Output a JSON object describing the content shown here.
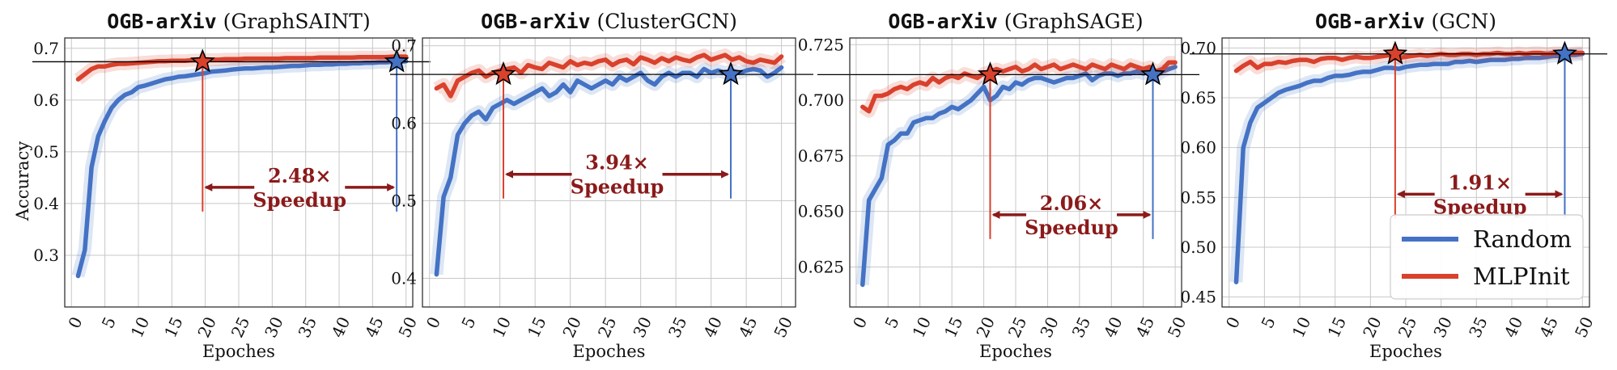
{
  "figure": {
    "ylabel": "Accuracy",
    "xlabel": "Epoches",
    "legend": {
      "placement": "lower-right of last panel",
      "entries": [
        {
          "name": "Random",
          "color": "#4472c4"
        },
        {
          "name": "MLPInit",
          "color": "#d9412c"
        }
      ]
    },
    "colors": {
      "random": "#4472c4",
      "mlpinit": "#d9412c",
      "annotation": "#8b1a1a",
      "hline": "#000000"
    }
  },
  "chart_data": [
    {
      "type": "line",
      "title_mono": "OGB-arXiv",
      "title_rest": " (GraphSAINT)",
      "xlabel": "Epoches",
      "ylabel": "Accuracy",
      "xlim": [
        -1,
        51
      ],
      "ylim": [
        0.2,
        0.72
      ],
      "xticks": [
        0,
        5,
        10,
        15,
        20,
        25,
        30,
        35,
        40,
        45,
        50
      ],
      "yticks": [
        0.3,
        0.4,
        0.5,
        0.6,
        0.7
      ],
      "ytick_labels": [
        "0.3",
        "0.4",
        "0.5",
        "0.6",
        "0.7"
      ],
      "grid": true,
      "hline": 0.674,
      "speedup": {
        "label": "2.48×",
        "word": "Speedup",
        "x_mlpinit": 19.6,
        "x_random": 48.6,
        "y": 0.425
      },
      "series": [
        {
          "name": "Random",
          "x": [
            1,
            2,
            3,
            4,
            5,
            6,
            7,
            8,
            9,
            10,
            11,
            12,
            13,
            14,
            15,
            16,
            17,
            18,
            19,
            20,
            21,
            22,
            23,
            24,
            25,
            26,
            27,
            28,
            29,
            30,
            31,
            32,
            33,
            34,
            35,
            36,
            37,
            38,
            39,
            40,
            41,
            42,
            43,
            44,
            45,
            46,
            47,
            48,
            49,
            50
          ],
          "y": [
            0.26,
            0.31,
            0.47,
            0.53,
            0.56,
            0.585,
            0.6,
            0.61,
            0.615,
            0.625,
            0.628,
            0.632,
            0.636,
            0.64,
            0.642,
            0.645,
            0.646,
            0.648,
            0.65,
            0.652,
            0.655,
            0.656,
            0.657,
            0.659,
            0.66,
            0.661,
            0.661,
            0.662,
            0.663,
            0.663,
            0.664,
            0.665,
            0.666,
            0.666,
            0.667,
            0.668,
            0.668,
            0.669,
            0.669,
            0.67,
            0.67,
            0.671,
            0.671,
            0.672,
            0.672,
            0.673,
            0.673,
            0.674,
            0.674,
            0.675
          ]
        },
        {
          "name": "MLPInit",
          "x": [
            1,
            2,
            3,
            4,
            5,
            6,
            7,
            8,
            9,
            10,
            11,
            12,
            13,
            14,
            15,
            16,
            17,
            18,
            19,
            20,
            21,
            22,
            23,
            24,
            25,
            26,
            27,
            28,
            29,
            30,
            31,
            32,
            33,
            34,
            35,
            36,
            37,
            38,
            39,
            40,
            41,
            42,
            43,
            44,
            45,
            46,
            47,
            48,
            49,
            50
          ],
          "y": [
            0.64,
            0.65,
            0.66,
            0.665,
            0.665,
            0.668,
            0.67,
            0.67,
            0.671,
            0.672,
            0.673,
            0.674,
            0.675,
            0.675,
            0.676,
            0.676,
            0.676,
            0.677,
            0.677,
            0.678,
            0.678,
            0.678,
            0.679,
            0.679,
            0.679,
            0.68,
            0.68,
            0.68,
            0.68,
            0.68,
            0.68,
            0.681,
            0.681,
            0.681,
            0.681,
            0.681,
            0.682,
            0.682,
            0.682,
            0.682,
            0.682,
            0.682,
            0.683,
            0.683,
            0.683,
            0.683,
            0.683,
            0.684,
            0.684,
            0.684
          ]
        }
      ]
    },
    {
      "type": "line",
      "title_mono": "OGB-arXiv",
      "title_rest": " (ClusterGCN)",
      "xlabel": "Epoches",
      "ylabel": "",
      "xlim": [
        -1,
        52
      ],
      "ylim": [
        0.363,
        0.71
      ],
      "xticks": [
        0,
        5,
        10,
        15,
        20,
        25,
        30,
        35,
        40,
        45,
        50
      ],
      "yticks": [
        0.4,
        0.5,
        0.6,
        0.7
      ],
      "ytick_labels": [
        "0.4",
        "0.5",
        "0.6",
        "0.7"
      ],
      "grid": true,
      "hline": 0.663,
      "speedup": {
        "label": "3.94×",
        "word": "Speedup",
        "x_mlpinit": 10.5,
        "x_random": 42.8,
        "y": 0.53
      },
      "series": [
        {
          "name": "Random",
          "x": [
            1,
            2,
            3,
            4,
            5,
            6,
            7,
            8,
            9,
            10,
            11,
            12,
            13,
            14,
            15,
            16,
            17,
            18,
            19,
            20,
            21,
            22,
            23,
            24,
            25,
            26,
            27,
            28,
            29,
            30,
            31,
            32,
            33,
            34,
            35,
            36,
            37,
            38,
            39,
            40,
            41,
            42,
            43,
            44,
            45,
            46,
            47,
            48,
            49,
            50
          ],
          "y": [
            0.405,
            0.505,
            0.53,
            0.585,
            0.6,
            0.61,
            0.615,
            0.605,
            0.62,
            0.625,
            0.63,
            0.625,
            0.63,
            0.635,
            0.64,
            0.645,
            0.635,
            0.64,
            0.65,
            0.64,
            0.655,
            0.65,
            0.645,
            0.65,
            0.655,
            0.65,
            0.66,
            0.655,
            0.66,
            0.665,
            0.655,
            0.65,
            0.66,
            0.665,
            0.66,
            0.665,
            0.665,
            0.66,
            0.67,
            0.665,
            0.668,
            0.665,
            0.668,
            0.665,
            0.668,
            0.67,
            0.668,
            0.66,
            0.665,
            0.672
          ]
        },
        {
          "name": "MLPInit",
          "x": [
            1,
            2,
            3,
            4,
            5,
            6,
            7,
            8,
            9,
            10,
            11,
            12,
            13,
            14,
            15,
            16,
            17,
            18,
            19,
            20,
            21,
            22,
            23,
            24,
            25,
            26,
            27,
            28,
            29,
            30,
            31,
            32,
            33,
            34,
            35,
            36,
            37,
            38,
            39,
            40,
            41,
            42,
            43,
            44,
            45,
            46,
            47,
            48,
            49,
            50
          ],
          "y": [
            0.645,
            0.65,
            0.635,
            0.655,
            0.66,
            0.665,
            0.668,
            0.66,
            0.665,
            0.668,
            0.67,
            0.672,
            0.665,
            0.675,
            0.672,
            0.67,
            0.678,
            0.675,
            0.672,
            0.68,
            0.675,
            0.678,
            0.676,
            0.68,
            0.682,
            0.675,
            0.68,
            0.682,
            0.676,
            0.685,
            0.682,
            0.678,
            0.684,
            0.68,
            0.685,
            0.682,
            0.68,
            0.685,
            0.688,
            0.682,
            0.685,
            0.688,
            0.682,
            0.685,
            0.68,
            0.678,
            0.682,
            0.68,
            0.678,
            0.686
          ]
        }
      ]
    },
    {
      "type": "line",
      "title_mono": "OGB-arXiv",
      "title_rest": " (GraphSAGE)",
      "xlabel": "Epoches",
      "ylabel": "",
      "xlim": [
        -1,
        51
      ],
      "ylim": [
        0.607,
        0.728
      ],
      "xticks": [
        0,
        5,
        10,
        15,
        20,
        25,
        30,
        35,
        40,
        45,
        50
      ],
      "yticks": [
        0.625,
        0.65,
        0.675,
        0.7,
        0.725
      ],
      "ytick_labels": [
        "0.625",
        "0.650",
        "0.675",
        "0.700",
        "0.725"
      ],
      "grid": true,
      "hline": 0.7115,
      "speedup": {
        "label": "2.06×",
        "word": "Speedup",
        "x_mlpinit": 21,
        "x_random": 46.5,
        "y": 0.647
      },
      "series": [
        {
          "name": "Random",
          "x": [
            1,
            2,
            3,
            4,
            5,
            6,
            7,
            8,
            9,
            10,
            11,
            12,
            13,
            14,
            15,
            16,
            17,
            18,
            19,
            20,
            21,
            22,
            23,
            24,
            25,
            26,
            27,
            28,
            29,
            30,
            31,
            32,
            33,
            34,
            35,
            36,
            37,
            38,
            39,
            40,
            41,
            42,
            43,
            44,
            45,
            46,
            47,
            48,
            49,
            50
          ],
          "y": [
            0.617,
            0.655,
            0.66,
            0.665,
            0.68,
            0.682,
            0.685,
            0.685,
            0.69,
            0.691,
            0.692,
            0.692,
            0.694,
            0.695,
            0.697,
            0.696,
            0.698,
            0.7,
            0.703,
            0.706,
            0.7,
            0.702,
            0.706,
            0.705,
            0.708,
            0.707,
            0.709,
            0.71,
            0.71,
            0.709,
            0.708,
            0.709,
            0.71,
            0.71,
            0.711,
            0.712,
            0.709,
            0.711,
            0.712,
            0.712,
            0.711,
            0.712,
            0.712,
            0.713,
            0.712,
            0.713,
            0.711,
            0.713,
            0.714,
            0.715
          ]
        },
        {
          "name": "MLPInit",
          "x": [
            1,
            2,
            3,
            4,
            5,
            6,
            7,
            8,
            9,
            10,
            11,
            12,
            13,
            14,
            15,
            16,
            17,
            18,
            19,
            20,
            21,
            22,
            23,
            24,
            25,
            26,
            27,
            28,
            29,
            30,
            31,
            32,
            33,
            34,
            35,
            36,
            37,
            38,
            39,
            40,
            41,
            42,
            43,
            44,
            45,
            46,
            47,
            48,
            49,
            50
          ],
          "y": [
            0.697,
            0.695,
            0.702,
            0.702,
            0.703,
            0.705,
            0.706,
            0.705,
            0.707,
            0.708,
            0.707,
            0.71,
            0.708,
            0.71,
            0.711,
            0.71,
            0.712,
            0.711,
            0.71,
            0.712,
            0.713,
            0.714,
            0.713,
            0.714,
            0.715,
            0.713,
            0.714,
            0.716,
            0.714,
            0.715,
            0.716,
            0.714,
            0.715,
            0.716,
            0.715,
            0.714,
            0.716,
            0.715,
            0.714,
            0.716,
            0.715,
            0.714,
            0.716,
            0.715,
            0.714,
            0.715,
            0.713,
            0.714,
            0.717,
            0.717
          ]
        }
      ]
    },
    {
      "type": "line",
      "title_mono": "OGB-arXiv",
      "title_rest": " (GCN)",
      "xlabel": "Epoches",
      "ylabel": "",
      "xlim": [
        -1,
        51
      ],
      "ylim": [
        0.44,
        0.71
      ],
      "xticks": [
        0,
        5,
        10,
        15,
        20,
        25,
        30,
        35,
        40,
        45,
        50
      ],
      "yticks": [
        0.45,
        0.5,
        0.55,
        0.6,
        0.65,
        0.7
      ],
      "ytick_labels": [
        "0.45",
        "0.50",
        "0.55",
        "0.60",
        "0.65",
        "0.70"
      ],
      "grid": true,
      "hline": 0.694,
      "speedup": {
        "label": "1.91×",
        "word": "Speedup",
        "x_mlpinit": 23.5,
        "x_random": 47.5,
        "y": 0.55
      },
      "series": [
        {
          "name": "Random",
          "x": [
            1,
            2,
            3,
            4,
            5,
            6,
            7,
            8,
            9,
            10,
            11,
            12,
            13,
            14,
            15,
            16,
            17,
            18,
            19,
            20,
            21,
            22,
            23,
            24,
            25,
            26,
            27,
            28,
            29,
            30,
            31,
            32,
            33,
            34,
            35,
            36,
            37,
            38,
            39,
            40,
            41,
            42,
            43,
            44,
            45,
            46,
            47,
            48,
            49,
            50
          ],
          "y": [
            0.465,
            0.6,
            0.625,
            0.64,
            0.645,
            0.65,
            0.655,
            0.658,
            0.66,
            0.662,
            0.665,
            0.667,
            0.667,
            0.67,
            0.672,
            0.672,
            0.673,
            0.675,
            0.676,
            0.676,
            0.678,
            0.68,
            0.68,
            0.679,
            0.681,
            0.682,
            0.683,
            0.683,
            0.684,
            0.684,
            0.684,
            0.686,
            0.686,
            0.687,
            0.686,
            0.687,
            0.688,
            0.688,
            0.688,
            0.689,
            0.689,
            0.69,
            0.69,
            0.69,
            0.691,
            0.692,
            0.692,
            0.693,
            0.693,
            0.694
          ]
        },
        {
          "name": "MLPInit",
          "x": [
            1,
            2,
            3,
            4,
            5,
            6,
            7,
            8,
            9,
            10,
            11,
            12,
            13,
            14,
            15,
            16,
            17,
            18,
            19,
            20,
            21,
            22,
            23,
            24,
            25,
            26,
            27,
            28,
            29,
            30,
            31,
            32,
            33,
            34,
            35,
            36,
            37,
            38,
            39,
            40,
            41,
            42,
            43,
            44,
            45,
            46,
            47,
            48,
            49,
            50
          ],
          "y": [
            0.677,
            0.682,
            0.686,
            0.68,
            0.684,
            0.684,
            0.686,
            0.685,
            0.687,
            0.688,
            0.688,
            0.686,
            0.689,
            0.69,
            0.69,
            0.688,
            0.69,
            0.691,
            0.69,
            0.69,
            0.691,
            0.692,
            0.693,
            0.69,
            0.691,
            0.692,
            0.693,
            0.692,
            0.693,
            0.694,
            0.693,
            0.693,
            0.694,
            0.694,
            0.693,
            0.694,
            0.694,
            0.695,
            0.694,
            0.694,
            0.695,
            0.694,
            0.695,
            0.695,
            0.694,
            0.695,
            0.695,
            0.694,
            0.695,
            0.695
          ]
        }
      ]
    }
  ]
}
